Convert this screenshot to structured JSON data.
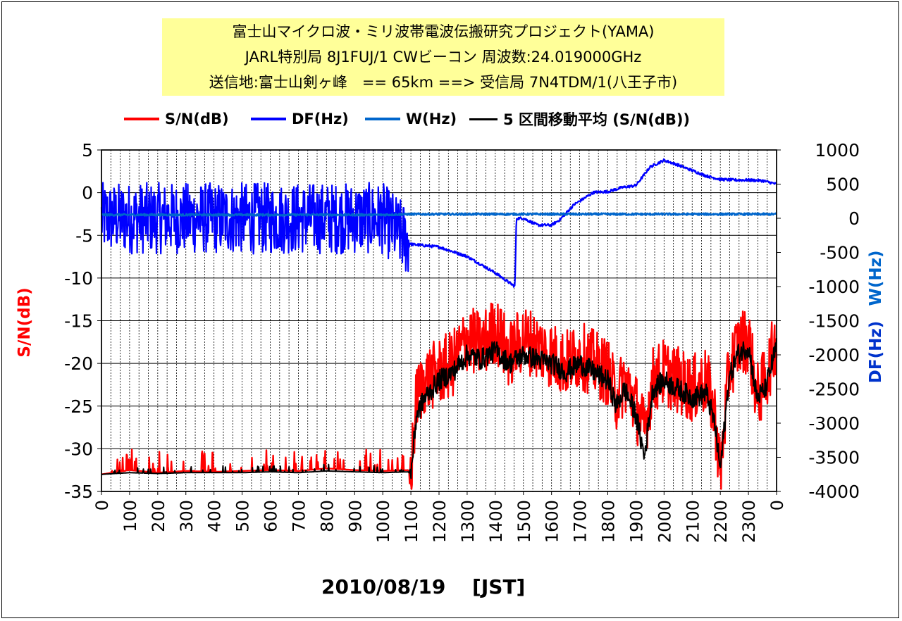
{
  "title_lines": [
    "富士山マイクロ波・ミリ波帯電波伝搬研究プロジェクト(YAMA)",
    "JARL特別局 8J1FUJ/1 CWビーコン 周波数:24.019000GHz",
    "送信地:富士山剣ヶ峰　== 65km ==> 受信局 7N4TDM/1(八王子市)"
  ],
  "legend": [
    {
      "label": "S/N(dB)",
      "color": "#ff0000"
    },
    {
      "label": "DF(Hz)",
      "color": "#0000ff"
    },
    {
      "label": "W(Hz)",
      "color": "#0066cc"
    },
    {
      "label": "5 区間移動平均 (S/N(dB))",
      "color": "#000000"
    }
  ],
  "xtitle": "2010/08/19　 [JST]",
  "chart_data": {
    "type": "line",
    "x_tick_labels": [
      "0",
      "100",
      "200",
      "300",
      "400",
      "500",
      "600",
      "700",
      "800",
      "900",
      "1000",
      "1100",
      "1200",
      "1300",
      "1400",
      "1500",
      "1600",
      "1700",
      "1800",
      "1900",
      "2000",
      "2100",
      "2200",
      "2300",
      "0"
    ],
    "x_range_hours": [
      0,
      24
    ],
    "ylabel_left": "S/N(dB)",
    "ylabel_right_1": "DF(Hz)",
    "ylabel_right_2": "W(Hz)",
    "ylim_left": [
      -35,
      5
    ],
    "yticks_left": [
      "5",
      "0",
      "-5",
      "-10",
      "-15",
      "-20",
      "-25",
      "-30",
      "-35"
    ],
    "ylim_right": [
      -4000,
      1000
    ],
    "yticks_right": [
      "1000",
      "500",
      "0",
      "-500",
      "-1000",
      "-1500",
      "-2000",
      "-2500",
      "-3000",
      "-3500",
      "-4000"
    ],
    "grid": "vertical dotted every ~20 min, horizontal solid major",
    "colors": {
      "sn": "#ff0000",
      "df": "#0000ff",
      "w": "#0066cc",
      "ma": "#000000"
    },
    "series": [
      {
        "name": "S/N(dB)",
        "x_hours": [
          0,
          1,
          2,
          3,
          4,
          5,
          6,
          7,
          8,
          9,
          10,
          10.9,
          11.0,
          11.2,
          11.5,
          12,
          12.5,
          13,
          13.5,
          14,
          14.5,
          15,
          15.5,
          16,
          16.5,
          17,
          17.5,
          18,
          18.3,
          18.6,
          19,
          19.3,
          19.6,
          20,
          20.5,
          21,
          21.5,
          21.8,
          22.0,
          22.3,
          22.6,
          23,
          23.3,
          23.6,
          24
        ],
        "values": [
          -33,
          -32.5,
          -32.8,
          -32.6,
          -32.7,
          -32.6,
          -32.5,
          -32.6,
          -32.3,
          -32.5,
          -32.6,
          -32.5,
          -33,
          -24,
          -22,
          -21,
          -20,
          -17,
          -18,
          -16,
          -19,
          -17,
          -18,
          -19,
          -20,
          -19,
          -20,
          -21,
          -24,
          -22,
          -25,
          -28,
          -22,
          -21,
          -22,
          -23,
          -22,
          -26,
          -33,
          -21,
          -18,
          -17,
          -24,
          -22,
          -17
        ]
      },
      {
        "name": "DF(Hz)",
        "x_hours": [
          0,
          2,
          4,
          6,
          8,
          10,
          11,
          12,
          13,
          14,
          14.7,
          14.75,
          15,
          15.5,
          16,
          16.3,
          16.8,
          17.5,
          18,
          18.5,
          19,
          19.5,
          20,
          20.5,
          21,
          21.5,
          22,
          22.5,
          23,
          23.5,
          24
        ],
        "values": [
          0,
          0,
          0,
          0,
          0,
          0,
          -380,
          -420,
          -560,
          -800,
          -1000,
          0,
          0,
          -100,
          -100,
          -20,
          200,
          380,
          390,
          450,
          480,
          750,
          850,
          780,
          700,
          620,
          570,
          560,
          560,
          550,
          500
        ]
      },
      {
        "name": "W(Hz)",
        "x_hours": [
          0,
          2,
          4,
          6,
          8,
          10,
          11,
          12,
          14,
          16,
          18,
          20,
          22,
          24
        ],
        "values": [
          50,
          50,
          50,
          50,
          50,
          50,
          60,
          60,
          60,
          60,
          60,
          60,
          60,
          60
        ]
      },
      {
        "name": "5 区間移動平均 (S/N(dB))",
        "x_hours": [
          0,
          1,
          2,
          3,
          4,
          5,
          6,
          7,
          8,
          9,
          10,
          10.9,
          11.0,
          11.2,
          11.5,
          12,
          12.5,
          13,
          13.5,
          14,
          14.5,
          15,
          15.5,
          16,
          16.5,
          17,
          17.5,
          18,
          18.3,
          18.6,
          19,
          19.3,
          19.6,
          20,
          20.5,
          21,
          21.5,
          21.8,
          22.0,
          22.3,
          22.6,
          23,
          23.3,
          23.6,
          24
        ],
        "values": [
          -33,
          -32.8,
          -32.9,
          -32.8,
          -32.8,
          -32.8,
          -32.7,
          -32.8,
          -32.6,
          -32.7,
          -32.8,
          -32.7,
          -33,
          -26,
          -24,
          -22,
          -21,
          -19,
          -19.5,
          -18.5,
          -20,
          -19,
          -19.5,
          -20,
          -21,
          -20,
          -21,
          -22,
          -25,
          -23,
          -26,
          -31,
          -23,
          -22,
          -23,
          -24,
          -23.5,
          -27,
          -32.5,
          -22,
          -19,
          -18,
          -24,
          -23,
          -18
        ]
      }
    ]
  }
}
